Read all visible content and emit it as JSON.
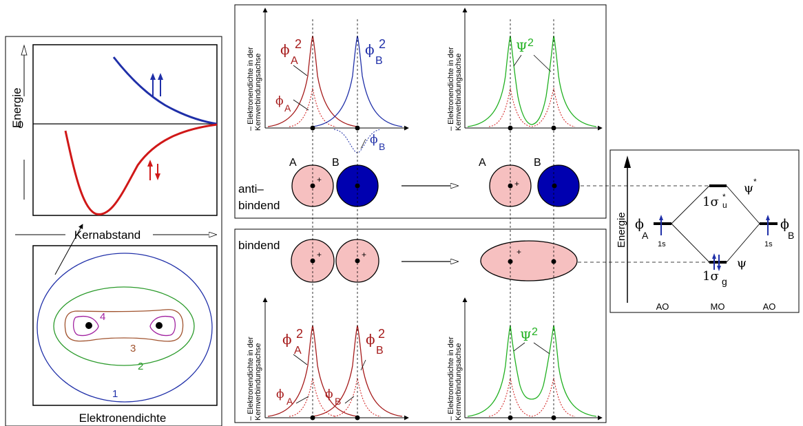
{
  "energy_panel": {
    "y_axis_label": "Energie",
    "zero_label": "0",
    "x_axis_label": "Kernabstand",
    "colors": {
      "antibonding": "#1f2fa8",
      "bonding": "#d01818"
    }
  },
  "density_panel": {
    "caption": "Elektronendichte",
    "contour_labels": [
      "1",
      "2",
      "3",
      "4"
    ],
    "contour_colors": [
      "#1f2fa8",
      "#2a9a2a",
      "#a0522d",
      "#a020a0"
    ]
  },
  "plots": {
    "axis_label_line1": "Elektronendichte in der",
    "axis_label_line2": "Kernverbindungsachse",
    "dash": "–"
  },
  "antibinding": {
    "label_line1": "anti–",
    "label_line2": "bindend",
    "phi": "ϕ",
    "sq": "2",
    "sub_a": "A",
    "sub_b": "B",
    "psi": "Ψ",
    "atom_a": "A",
    "atom_b": "B"
  },
  "binding": {
    "label": "bindend"
  },
  "mo_diagram": {
    "y_axis_label": "Energie",
    "phi": "ϕ",
    "sub_a": "A",
    "sub_b": "B",
    "orbital_left": "1s",
    "orbital_right": "1s",
    "sigma_u": "1σ",
    "sigma_u_sub": "u",
    "sigma_u_sup": "*",
    "sigma_g": "1σ",
    "sigma_g_sub": "g",
    "psi": "ψ",
    "psi_star_sup": "*",
    "column_labels": [
      "AO",
      "MO",
      "AO"
    ]
  },
  "colors": {
    "red": "#d01818",
    "darkred": "#a51a1a",
    "blue": "#1f2fa8",
    "green": "#20b020",
    "pink": "#f6c0c0",
    "navy": "#0000b0"
  }
}
